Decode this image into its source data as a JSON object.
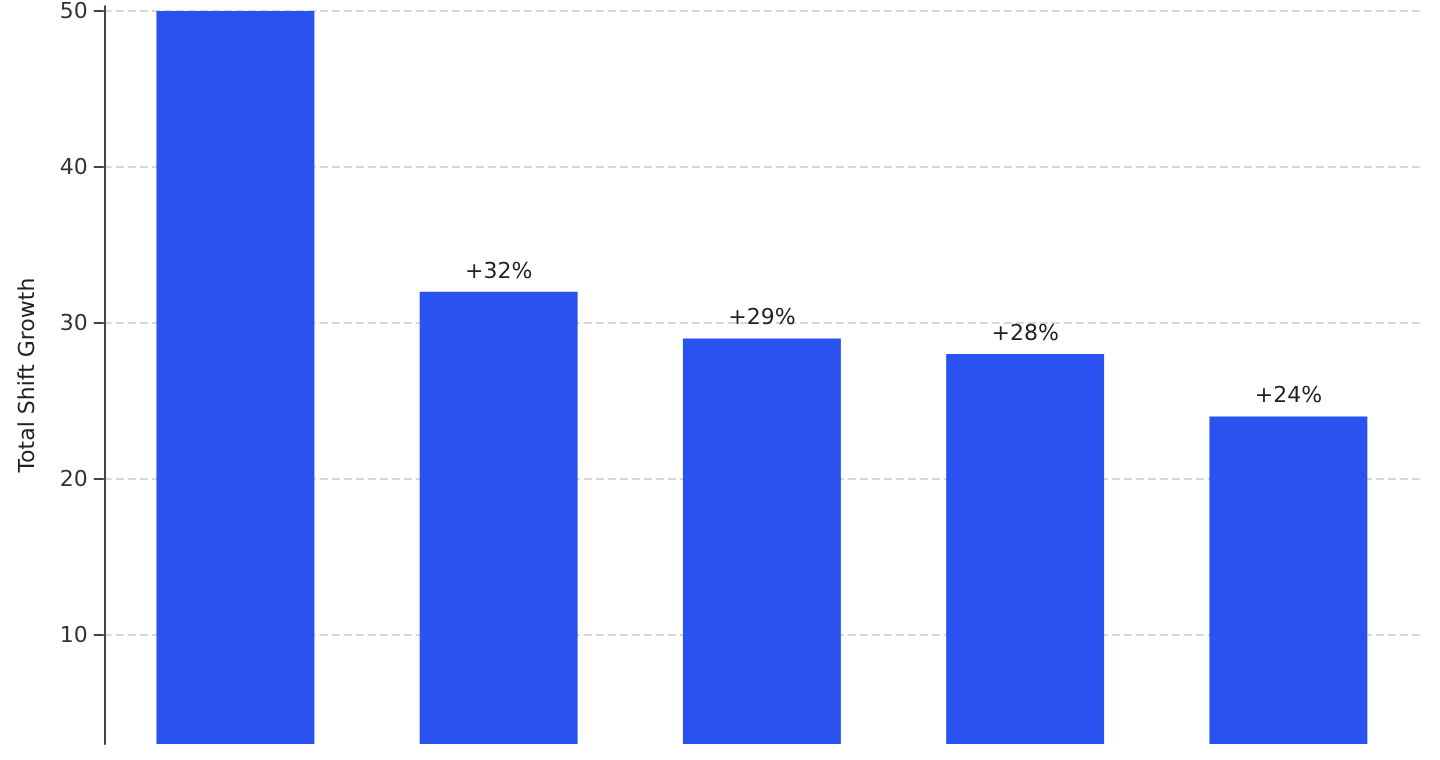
{
  "chart_data": {
    "type": "bar",
    "ylabel": "Total Shift Growth",
    "categories": [
      null,
      null,
      null,
      null,
      null
    ],
    "values": [
      50,
      32,
      29,
      28,
      24
    ],
    "value_labels": [
      null,
      "+32%",
      "+29%",
      "+28%",
      "+24%"
    ],
    "color": "#2952f0",
    "ylim": [
      3,
      50.3
    ],
    "yticks": [
      10,
      20,
      30,
      40,
      50
    ],
    "grid": "y"
  }
}
